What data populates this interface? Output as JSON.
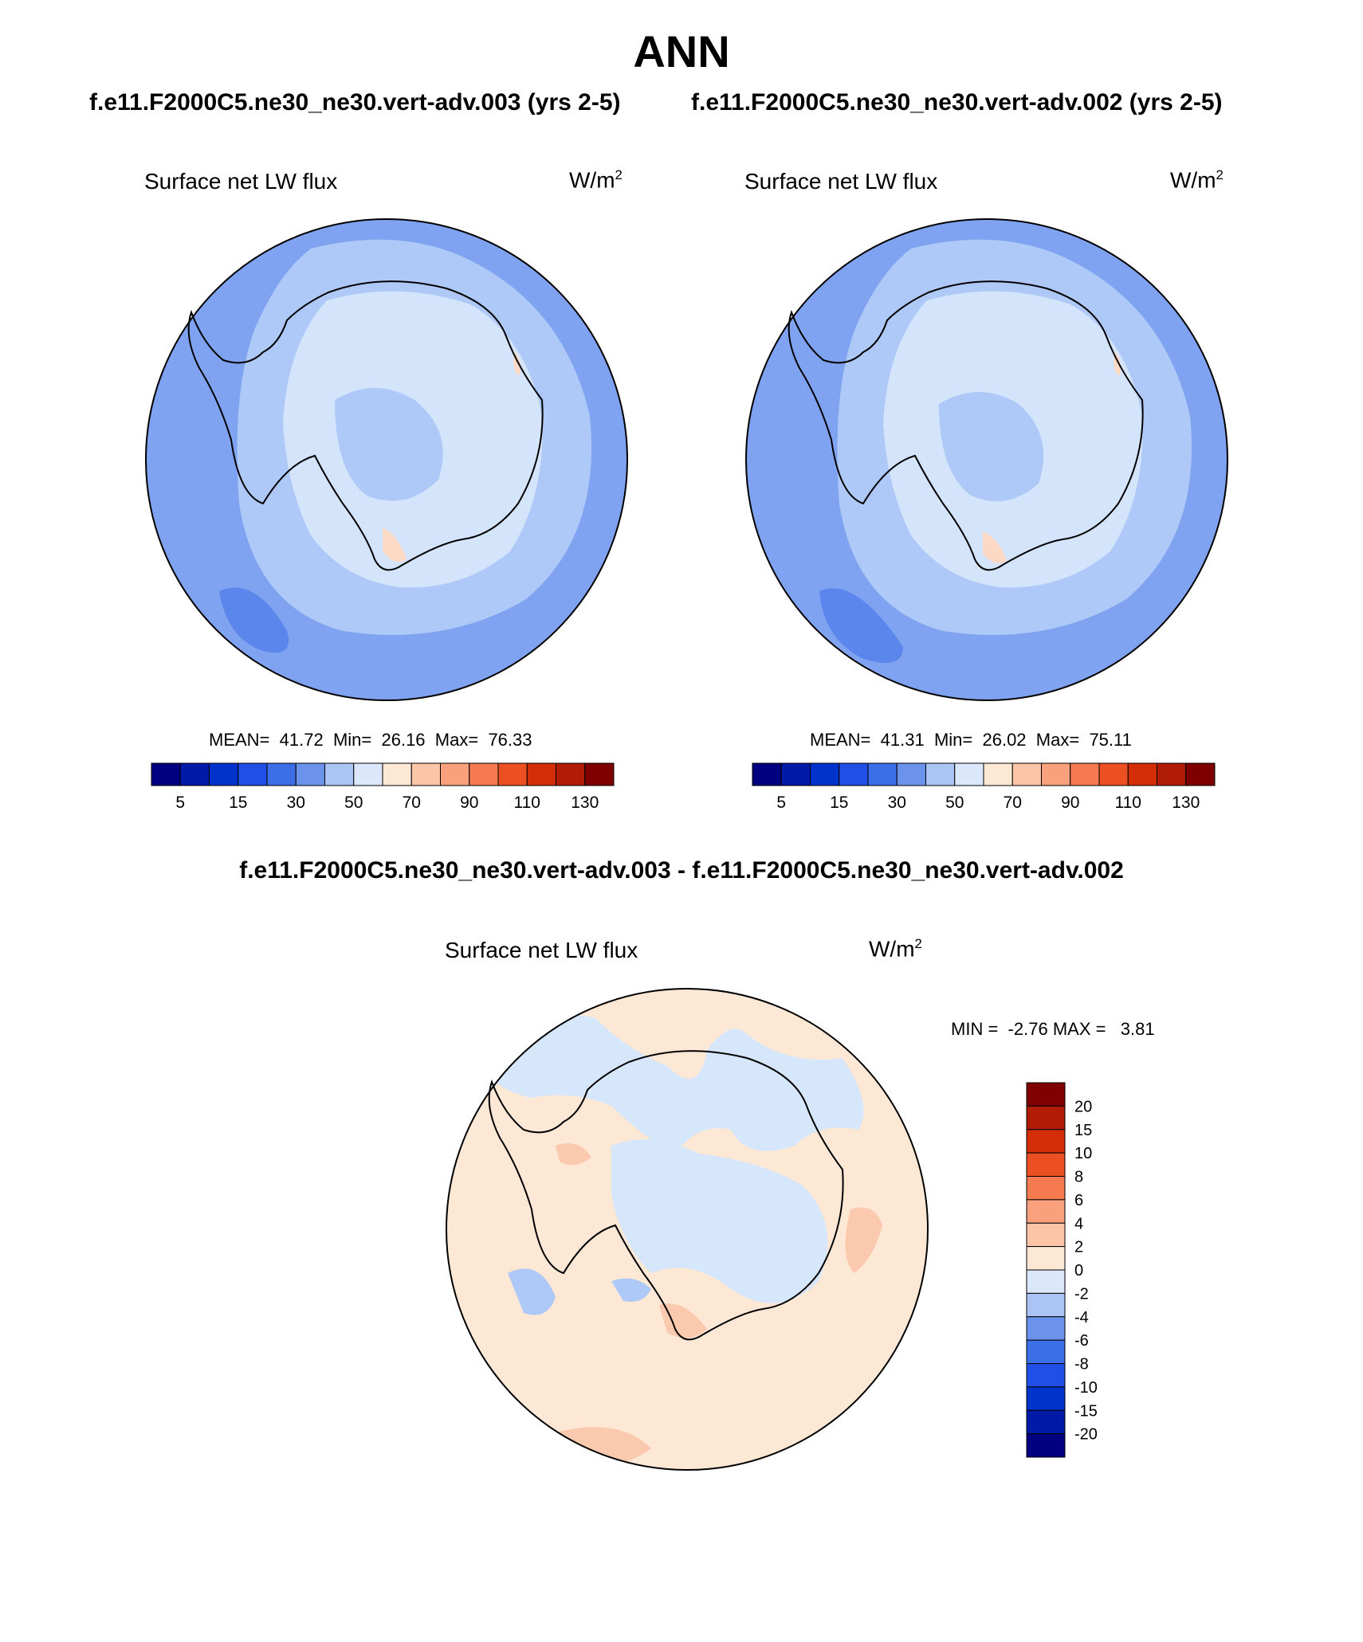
{
  "figure": {
    "season": "ANN",
    "case_a_title": "f.e11.F2000C5.ne30_ne30.vert-adv.003 (yrs 2-5)",
    "case_b_title": "f.e11.F2000C5.ne30_ne30.vert-adv.002 (yrs 2-5)",
    "diff_title": "f.e11.F2000C5.ne30_ne30.vert-adv.003 - f.e11.F2000C5.ne30_ne30.vert-adv.002"
  },
  "panels": {
    "a": {
      "variable": "Surface net LW flux",
      "units_base": "W/m",
      "units_exp": "2",
      "mean_label": "MEAN=",
      "mean": "41.72",
      "min_label": "Min=",
      "min": "26.16",
      "max_label": "Max=",
      "max": "76.33"
    },
    "b": {
      "variable": "Surface net LW flux",
      "units_base": "W/m",
      "units_exp": "2",
      "mean_label": "MEAN=",
      "mean": "41.31",
      "min_label": "Min=",
      "min": "26.02",
      "max_label": "Max=",
      "max": "75.11"
    },
    "diff": {
      "variable": "Surface net LW flux",
      "units_base": "W/m",
      "units_exp": "2",
      "min_label": "MIN =",
      "min": "-2.76",
      "max_label": "MAX =",
      "max": "3.81"
    }
  },
  "colorbar_main": {
    "colors": [
      "#000080",
      "#001aa8",
      "#0033cc",
      "#1f4fe6",
      "#3c6ee8",
      "#6b93ec",
      "#a9c4f5",
      "#dbe8fb",
      "#fde8d6",
      "#fcc5a8",
      "#f9a07c",
      "#f57a50",
      "#ec4f21",
      "#d42e08",
      "#b11c06",
      "#7f0000"
    ],
    "labels": [
      "5",
      "15",
      "30",
      "50",
      "70",
      "90",
      "110",
      "130"
    ]
  },
  "colorbar_diff": {
    "colors": [
      "#000080",
      "#001aa8",
      "#0033cc",
      "#1f4fe6",
      "#3c6ee8",
      "#6b93ec",
      "#a9c4f5",
      "#dbe8fb",
      "#fde8d6",
      "#fcc5a8",
      "#f9a07c",
      "#f57a50",
      "#ec4f21",
      "#d42e08",
      "#b11c06",
      "#7f0000"
    ],
    "labels": [
      "20",
      "15",
      "10",
      "8",
      "6",
      "4",
      "2",
      "0",
      "-2",
      "-4",
      "-6",
      "-8",
      "-10",
      "-15",
      "-20"
    ]
  },
  "map_colors": {
    "ocean_outer": "#7fa3f0",
    "ocean_dark": "#5b86ec",
    "ring_light": "#aec9f7",
    "land_light": "#d4e4fb",
    "land_mid": "#aec9f7",
    "warm_patch": "#fbd9c4",
    "diff_base": "#fde8d6",
    "diff_neg": "#d6e6fb",
    "diff_neg2": "#aec9f7",
    "diff_pos": "#fbc9ad"
  }
}
